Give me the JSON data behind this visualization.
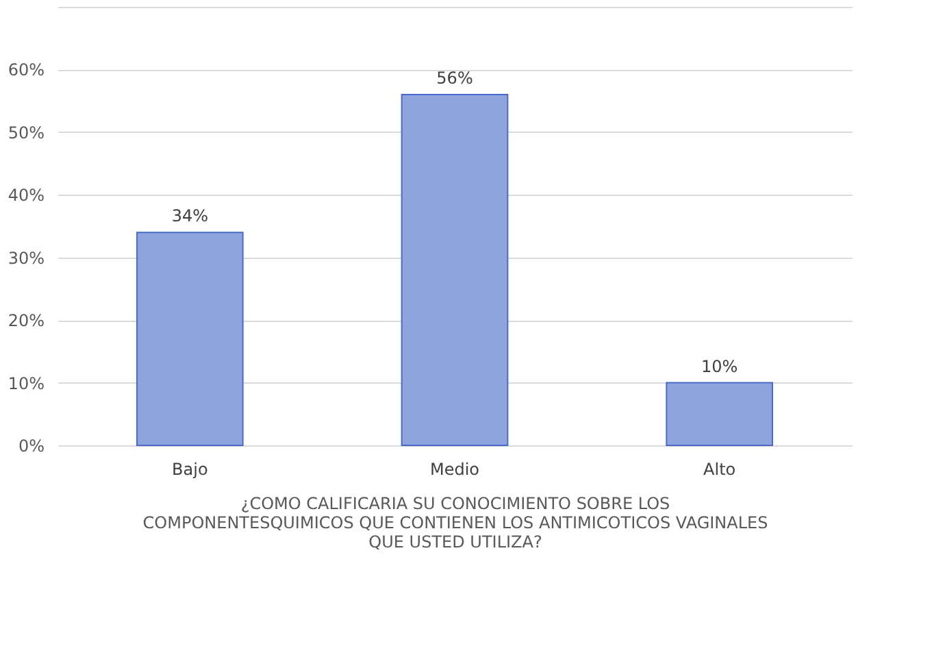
{
  "chart_data": {
    "type": "bar",
    "categories": [
      "Bajo",
      "Medio",
      "Alto"
    ],
    "values": [
      34,
      56,
      10
    ],
    "value_labels": [
      "34%",
      "56%",
      "10%"
    ],
    "color": "#8fa3dc",
    "xlabel": "¿COMO CALIFICARIA SU CONOCIMIENTO SOBRE LOS COMPONENTESQUIMICOS QUE CONTIENEN LOS ANTIMICOTICOS VAGINALES QUE USTED UTILIZA?",
    "ylim": [
      0,
      70
    ],
    "yticks": [
      {
        "value": 0,
        "label": "0%"
      },
      {
        "value": 10,
        "label": "10%"
      },
      {
        "value": 20,
        "label": "20%"
      },
      {
        "value": 30,
        "label": "30%"
      },
      {
        "value": 40,
        "label": "40%"
      },
      {
        "value": 50,
        "label": "50%"
      },
      {
        "value": 60,
        "label": "60%"
      },
      {
        "value": 70,
        "label": null
      }
    ],
    "grid": true
  }
}
